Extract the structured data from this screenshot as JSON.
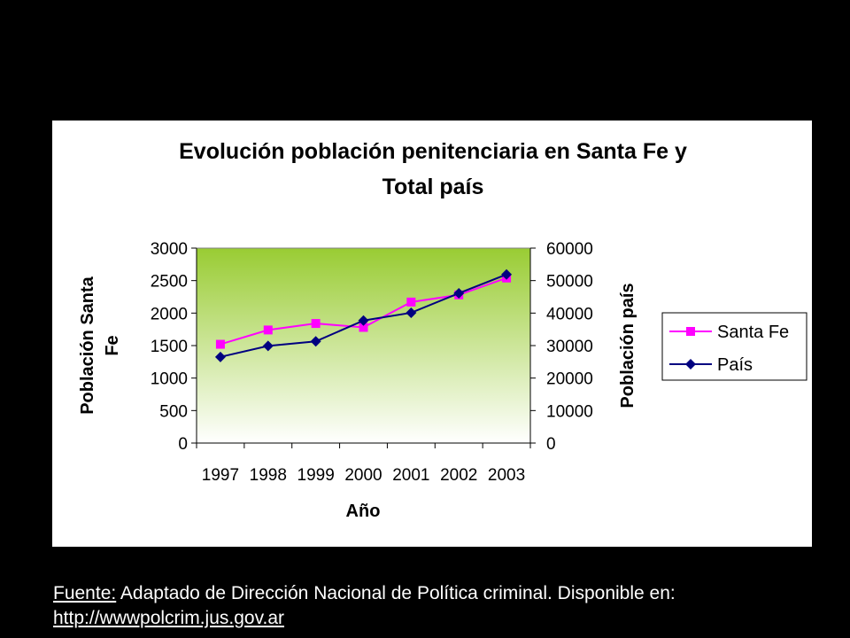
{
  "chart_data": {
    "type": "line",
    "title_line1": "Evolución población penitenciaria en Santa Fe y",
    "title_line2": "Total país",
    "xlabel": "Año",
    "ylabel_left_line1": "Población Santa",
    "ylabel_left_line2": "Fe",
    "ylabel_right": "Población país",
    "categories": [
      "1997",
      "1998",
      "1999",
      "2000",
      "2001",
      "2002",
      "2003"
    ],
    "y_left": {
      "min": 0,
      "max": 3000,
      "ticks": [
        "0",
        "500",
        "1000",
        "1500",
        "2000",
        "2500",
        "3000"
      ]
    },
    "y_right": {
      "min": 0,
      "max": 60000,
      "ticks": [
        "0",
        "10000",
        "20000",
        "30000",
        "40000",
        "50000",
        "60000"
      ]
    },
    "series": [
      {
        "name": "Santa Fe",
        "axis": "left",
        "color": "#FF00FF",
        "marker": "square",
        "values": [
          1520,
          1740,
          1840,
          1780,
          2170,
          2280,
          2540
        ]
      },
      {
        "name": "País",
        "axis": "right",
        "color": "#000080",
        "marker": "diamond",
        "values": [
          26500,
          29900,
          31300,
          37700,
          40100,
          46100,
          51900
        ]
      }
    ],
    "plot_background": "gradient #99CC33 to #FFFFFF",
    "legend_position": "right",
    "grid": false
  },
  "footer": {
    "source_label": "Fuente:",
    "source_text": " Adaptado de Dirección Nacional de Política criminal. Disponible en:",
    "link_text": "http://wwwpolcrim.jus.gov.ar"
  }
}
